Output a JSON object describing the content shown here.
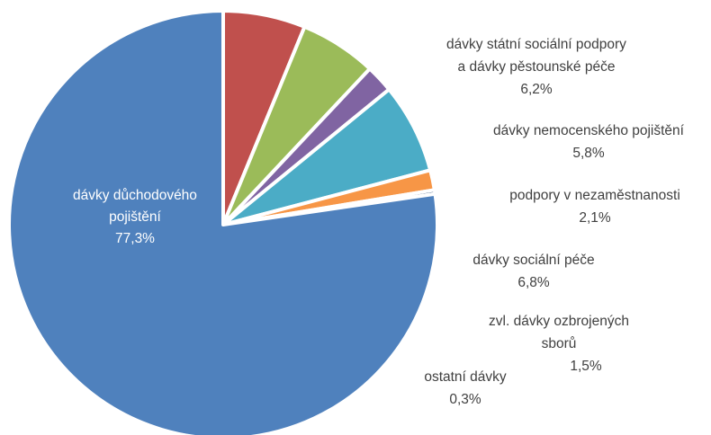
{
  "chart_data": {
    "type": "pie",
    "title": "",
    "start_angle_deg": 270,
    "direction": "clockwise",
    "slices": [
      {
        "label": [
          "dávky státní sociální podpory",
          "a dávky pěstounské péče"
        ],
        "value_text": "6,2%",
        "value": 6.2,
        "color": "#C0504D"
      },
      {
        "label": [
          "dávky nemocenského pojištění"
        ],
        "value_text": "5,8%",
        "value": 5.8,
        "color": "#9BBB59"
      },
      {
        "label": [
          "podpory v nezaměstnanosti"
        ],
        "value_text": "2,1%",
        "value": 2.1,
        "color": "#8064A2"
      },
      {
        "label": [
          "dávky sociální péče"
        ],
        "value_text": "6,8%",
        "value": 6.8,
        "color": "#4BACC6"
      },
      {
        "label": [
          "zvl. dávky ozbrojených",
          "sborů"
        ],
        "value_text": "1,5%",
        "value": 1.5,
        "color": "#F79646"
      },
      {
        "label": [
          "ostatní dávky"
        ],
        "value_text": "0,3%",
        "value": 0.3,
        "color": "#2C4D75"
      },
      {
        "label": [
          "dávky důchodového",
          "pojištění"
        ],
        "value_text": "77,3%",
        "value": 77.3,
        "color": "#4F81BD"
      }
    ]
  }
}
